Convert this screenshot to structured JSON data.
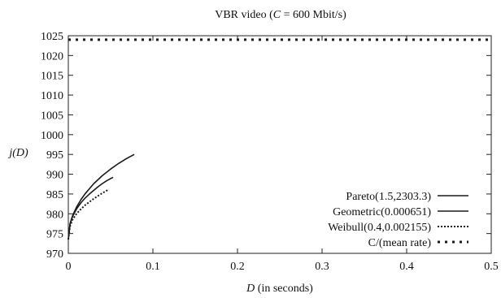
{
  "chart_data": {
    "type": "line",
    "title": "VBR video (C = 600 Mbit/s)",
    "title_parts": {
      "prefix": "VBR video (",
      "symbol": "C",
      "suffix": " = 600 Mbit/s)"
    },
    "xlabel": "D (in seconds)",
    "xlabel_parts": {
      "symbol": "D",
      "suffix": " (in seconds)"
    },
    "ylabel": "j(D)",
    "xlim": [
      0,
      0.5
    ],
    "ylim": [
      970,
      1025
    ],
    "x_ticks": [
      {
        "value": 0,
        "label": "0"
      },
      {
        "value": 0.1,
        "label": "0.1"
      },
      {
        "value": 0.2,
        "label": "0.2"
      },
      {
        "value": 0.3,
        "label": "0.3"
      },
      {
        "value": 0.4,
        "label": "0.4"
      },
      {
        "value": 0.5,
        "label": "0.5"
      }
    ],
    "y_ticks": [
      {
        "value": 970,
        "label": "970"
      },
      {
        "value": 975,
        "label": "975"
      },
      {
        "value": 980,
        "label": "980"
      },
      {
        "value": 985,
        "label": "985"
      },
      {
        "value": 990,
        "label": "990"
      },
      {
        "value": 995,
        "label": "995"
      },
      {
        "value": 1000,
        "label": "1000"
      },
      {
        "value": 1005,
        "label": "1005"
      },
      {
        "value": 1010,
        "label": "1010"
      },
      {
        "value": 1015,
        "label": "1015"
      },
      {
        "value": 1020,
        "label": "1020"
      },
      {
        "value": 1025,
        "label": "1025"
      }
    ],
    "grid": false,
    "legend_position": "bottom-right",
    "series": [
      {
        "name": "Pareto(1.5,2303.3)",
        "style": "solid",
        "color": "#1a1a1a",
        "x": [
          0,
          0.002,
          0.005,
          0.01,
          0.015,
          0.02,
          0.03,
          0.04,
          0.05,
          0.06,
          0.07,
          0.078
        ],
        "y": [
          973.5,
          977.5,
          979.5,
          981.8,
          983.6,
          985.1,
          987.6,
          989.6,
          991.3,
          992.8,
          994.1,
          995.0
        ]
      },
      {
        "name": "Geometric(0.000651)",
        "style": "solid",
        "color": "#1a1a1a",
        "x": [
          0,
          0.002,
          0.005,
          0.01,
          0.015,
          0.02,
          0.025,
          0.03,
          0.035,
          0.04,
          0.045,
          0.05,
          0.053
        ],
        "y": [
          973.5,
          977.3,
          979.3,
          981.3,
          982.8,
          984.0,
          985.0,
          985.9,
          986.8,
          987.6,
          988.3,
          988.9,
          989.2
        ]
      },
      {
        "name": "Weibull(0.4,0.002155)",
        "style": "dotted",
        "color": "#1a1a1a",
        "x": [
          0,
          0.002,
          0.005,
          0.01,
          0.015,
          0.02,
          0.025,
          0.03,
          0.035,
          0.04,
          0.045,
          0.048
        ],
        "y": [
          973.5,
          976.8,
          978.5,
          980.1,
          981.2,
          982.2,
          983.0,
          983.8,
          984.5,
          985.2,
          985.8,
          986.2
        ]
      },
      {
        "name": "C/(mean rate)",
        "style": "dashed",
        "color": "#1a1a1a",
        "x": [
          0,
          0.5
        ],
        "y": [
          1024,
          1024
        ]
      }
    ]
  }
}
